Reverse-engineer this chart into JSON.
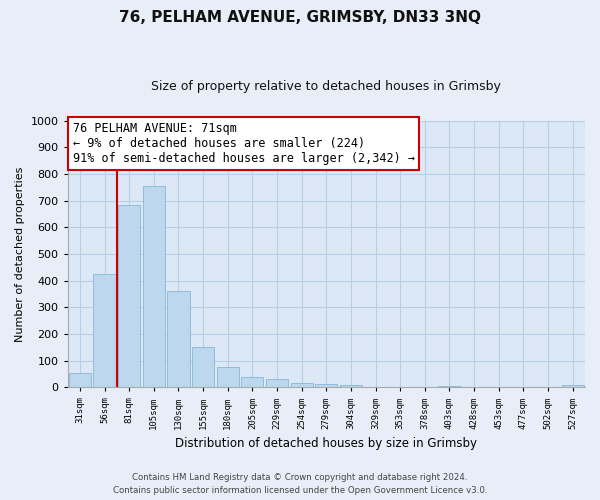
{
  "title": "76, PELHAM AVENUE, GRIMSBY, DN33 3NQ",
  "subtitle": "Size of property relative to detached houses in Grimsby",
  "xlabel": "Distribution of detached houses by size in Grimsby",
  "ylabel": "Number of detached properties",
  "bar_labels": [
    "31sqm",
    "56sqm",
    "81sqm",
    "105sqm",
    "130sqm",
    "155sqm",
    "180sqm",
    "205sqm",
    "229sqm",
    "254sqm",
    "279sqm",
    "304sqm",
    "329sqm",
    "353sqm",
    "378sqm",
    "403sqm",
    "428sqm",
    "453sqm",
    "477sqm",
    "502sqm",
    "527sqm"
  ],
  "bar_values": [
    53,
    425,
    683,
    755,
    363,
    152,
    75,
    40,
    32,
    17,
    11,
    10,
    0,
    0,
    0,
    5,
    0,
    0,
    0,
    0,
    8
  ],
  "bar_color": "#bdd7ee",
  "bar_edge_color": "#7ab0d4",
  "vline_x_idx": 1.5,
  "vline_color": "#cc0000",
  "annotation_line1": "76 PELHAM AVENUE: 71sqm",
  "annotation_line2": "← 9% of detached houses are smaller (224)",
  "annotation_line3": "91% of semi-detached houses are larger (2,342) →",
  "annotation_box_color": "#ffffff",
  "annotation_box_edge": "#cc0000",
  "ylim": [
    0,
    1000
  ],
  "yticks": [
    0,
    100,
    200,
    300,
    400,
    500,
    600,
    700,
    800,
    900,
    1000
  ],
  "footer_line1": "Contains HM Land Registry data © Crown copyright and database right 2024.",
  "footer_line2": "Contains public sector information licensed under the Open Government Licence v3.0.",
  "bg_color": "#e8eef7",
  "plot_bg_color": "#dce8f5",
  "grid_color": "#b8cfe8",
  "title_fontsize": 11,
  "subtitle_fontsize": 9,
  "ylabel_fontsize": 8,
  "xlabel_fontsize": 8.5
}
